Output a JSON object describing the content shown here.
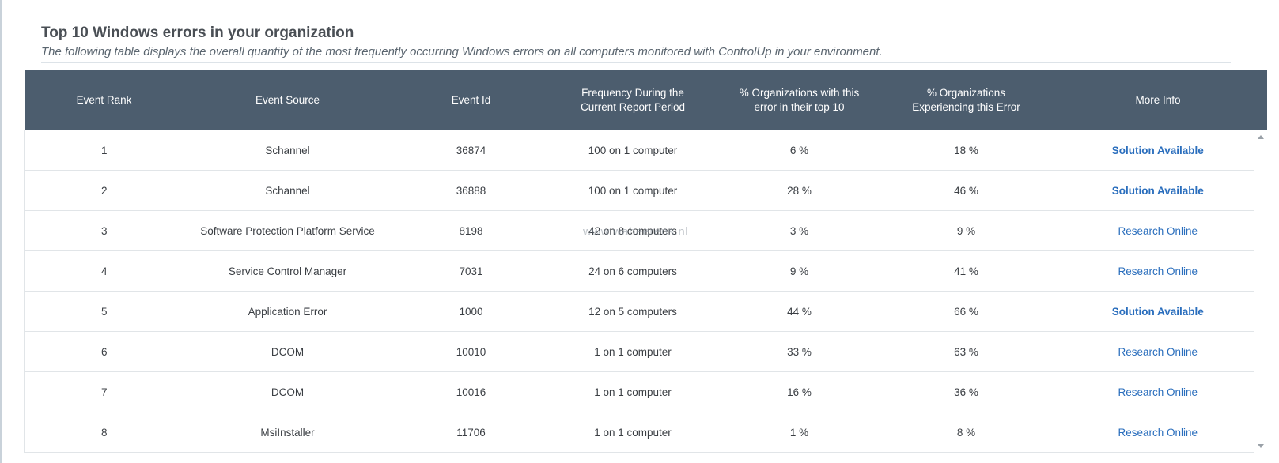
{
  "header": {
    "title": "Top 10 Windows errors in your organization",
    "subtitle": "The following table displays the overall quantity of the most frequently occurring Windows errors on all computers monitored with ControlUp in your environment."
  },
  "table": {
    "columns": [
      "Event Rank",
      "Event Source",
      "Event Id",
      "Frequency During the Current Report Period",
      "% Organizations with this error in their top 10",
      "% Organizations Experiencing this Error",
      "More Info"
    ],
    "rows": [
      {
        "rank": "1",
        "source": "Schannel",
        "event_id": "36874",
        "frequency": "100 on 1 computer",
        "pct_top10": "6 %",
        "pct_experiencing": "18 %",
        "more_info": "Solution Available"
      },
      {
        "rank": "2",
        "source": "Schannel",
        "event_id": "36888",
        "frequency": "100 on 1 computer",
        "pct_top10": "28 %",
        "pct_experiencing": "46 %",
        "more_info": "Solution Available"
      },
      {
        "rank": "3",
        "source": "Software Protection Platform Service",
        "event_id": "8198",
        "frequency": "42 on 8 computers",
        "pct_top10": "3 %",
        "pct_experiencing": "9 %",
        "more_info": "Research Online"
      },
      {
        "rank": "4",
        "source": "Service Control Manager",
        "event_id": "7031",
        "frequency": "24 on 6 computers",
        "pct_top10": "9 %",
        "pct_experiencing": "41 %",
        "more_info": "Research Online"
      },
      {
        "rank": "5",
        "source": "Application Error",
        "event_id": "1000",
        "frequency": "12 on 5 computers",
        "pct_top10": "44 %",
        "pct_experiencing": "66 %",
        "more_info": "Solution Available"
      },
      {
        "rank": "6",
        "source": "DCOM",
        "event_id": "10010",
        "frequency": "1 on 1 computer",
        "pct_top10": "33 %",
        "pct_experiencing": "63 %",
        "more_info": "Research Online"
      },
      {
        "rank": "7",
        "source": "DCOM",
        "event_id": "10016",
        "frequency": "1 on 1 computer",
        "pct_top10": "16 %",
        "pct_experiencing": "36 %",
        "more_info": "Research Online"
      },
      {
        "rank": "8",
        "source": "MsiInstaller",
        "event_id": "11706",
        "frequency": "1 on 1 computer",
        "pct_top10": "1 %",
        "pct_experiencing": "8 %",
        "more_info": "Research Online"
      }
    ]
  },
  "watermark": "www.wabeerens.nl",
  "colors": {
    "header_bg": "#4c5d6e",
    "link": "#2a6ebd",
    "row_border": "#e1e5e8"
  }
}
